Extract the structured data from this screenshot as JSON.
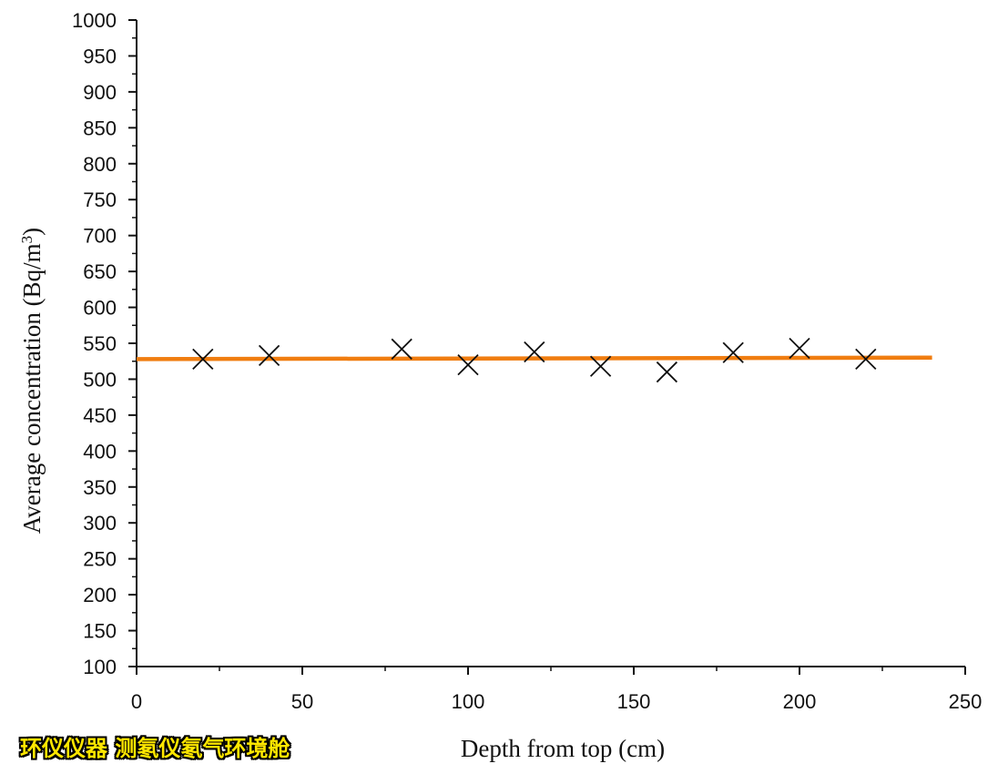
{
  "chart_data": {
    "type": "scatter",
    "xlabel": "Depth  from top (cm)",
    "ylabel": "Average concentration (Bq/m",
    "ylabel_superscript": "3",
    "ylabel_close": ")",
    "xlim": [
      0,
      250
    ],
    "ylim": [
      100,
      1000
    ],
    "x_ticks": [
      0,
      50,
      100,
      150,
      200,
      250
    ],
    "y_ticks": [
      100,
      150,
      200,
      250,
      300,
      350,
      400,
      450,
      500,
      550,
      600,
      650,
      700,
      750,
      800,
      850,
      900,
      950,
      1000
    ],
    "grid": false,
    "marker": "x",
    "points": [
      {
        "x": 20,
        "y": 528
      },
      {
        "x": 40,
        "y": 533
      },
      {
        "x": 80,
        "y": 542
      },
      {
        "x": 100,
        "y": 520
      },
      {
        "x": 120,
        "y": 538
      },
      {
        "x": 140,
        "y": 518
      },
      {
        "x": 160,
        "y": 510
      },
      {
        "x": 180,
        "y": 537
      },
      {
        "x": 200,
        "y": 543
      },
      {
        "x": 220,
        "y": 528
      }
    ],
    "reference_line": {
      "x": [
        0,
        240
      ],
      "y": [
        528,
        530
      ]
    },
    "colors": {
      "line": "#f07d10",
      "marker": "#111111",
      "axis": "#111111"
    }
  },
  "watermark": {
    "text": "环仪仪器 测氡仪氡气环境舱",
    "color": "#ffe600"
  }
}
